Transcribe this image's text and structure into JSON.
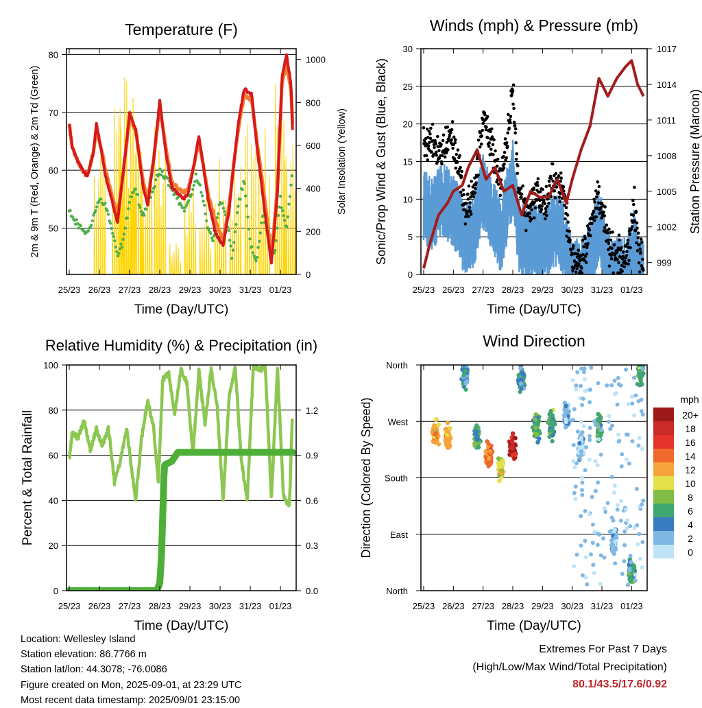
{
  "chart_data": [
    {
      "type": "line",
      "title": "Temperature (F)",
      "xlabel": "Time (Day/UTC)",
      "ylabel": "2m & 9m T (Red, Orange) & 2m Td (Green)",
      "ylabel_right": "Solar Insolation (Yellow)",
      "x_ticks": [
        "25/23",
        "26/23",
        "27/23",
        "28/23",
        "29/23",
        "30/23",
        "31/23",
        "01/23"
      ],
      "ylim": [
        42,
        81
      ],
      "y_ticks": [
        50,
        60,
        70,
        80
      ],
      "ylim_right": [
        0,
        1050
      ],
      "y_ticks_right": [
        0,
        200,
        400,
        600,
        800,
        1000
      ],
      "grid": "horizontal",
      "series": [
        {
          "name": "2m T",
          "color": "#d7191c",
          "x_days": [
            0,
            0.1,
            0.25,
            0.45,
            0.6,
            0.8,
            0.9,
            1.05,
            1.2,
            1.4,
            1.6,
            1.8,
            2.0,
            2.2,
            2.45,
            2.6,
            2.8,
            3.0,
            3.2,
            3.4,
            3.6,
            3.8,
            3.95,
            4.1,
            4.3,
            4.6,
            4.85,
            5.1,
            5.3,
            5.45,
            5.6,
            5.8,
            6.05,
            6.2,
            6.5,
            6.7,
            6.9,
            7.05,
            7.2,
            7.35,
            7.4
          ],
          "values": [
            68,
            64,
            62,
            60,
            59,
            63,
            68,
            64,
            59,
            55,
            51,
            60,
            70,
            67,
            57,
            54,
            62,
            72,
            63,
            57,
            56,
            55,
            56,
            60,
            66,
            55,
            49,
            47,
            53,
            61,
            68,
            74,
            73,
            65,
            52,
            44,
            56,
            76,
            80,
            75,
            67
          ]
        },
        {
          "name": "9m T",
          "color": "#f47d30",
          "x_days": [
            0,
            0.1,
            0.25,
            0.45,
            0.6,
            0.8,
            0.9,
            1.05,
            1.2,
            1.4,
            1.6,
            1.8,
            2.0,
            2.2,
            2.45,
            2.6,
            2.8,
            3.0,
            3.2,
            3.4,
            3.6,
            3.8,
            3.95,
            4.1,
            4.3,
            4.6,
            4.85,
            5.1,
            5.3,
            5.45,
            5.6,
            5.8,
            6.05,
            6.2,
            6.5,
            6.7,
            6.9,
            7.05,
            7.2,
            7.35,
            7.4
          ],
          "values": [
            68,
            64,
            62,
            60,
            59,
            63,
            67,
            64,
            60,
            56,
            52,
            60,
            69,
            67,
            58,
            55,
            62,
            71,
            64,
            58,
            57,
            56,
            57,
            60,
            65,
            56,
            51,
            48,
            54,
            61,
            67,
            73,
            72,
            66,
            54,
            45,
            57,
            75,
            78,
            74,
            68
          ]
        },
        {
          "name": "2m Td",
          "color": "#4daf4a",
          "x_days": [
            0,
            0.2,
            0.4,
            0.6,
            0.8,
            1.0,
            1.2,
            1.4,
            1.6,
            1.8,
            2.0,
            2.2,
            2.4,
            2.6,
            2.8,
            3.0,
            3.2,
            3.4,
            3.6,
            3.8,
            4.0,
            4.2,
            4.4,
            4.6,
            4.8,
            5.0,
            5.2,
            5.4,
            5.6,
            5.8,
            6.0,
            6.2,
            6.4,
            6.6,
            6.8,
            7.0,
            7.2,
            7.4
          ],
          "values": [
            53,
            51,
            50,
            49,
            52,
            55,
            54,
            50,
            45,
            48,
            55,
            57,
            52,
            54,
            57,
            60,
            59,
            57,
            55,
            53,
            55,
            59,
            56,
            50,
            48,
            55,
            52,
            45,
            54,
            58,
            47,
            44,
            52,
            50,
            45,
            55,
            50,
            60
          ]
        },
        {
          "name": "Solar Insolation",
          "color": "#ffd400",
          "axis": "right",
          "peaks": [
            [
              1.0,
              600
            ],
            [
              1.6,
              840
            ],
            [
              1.85,
              900
            ],
            [
              2.0,
              1010
            ],
            [
              2.25,
              720
            ],
            [
              2.55,
              650
            ],
            [
              3.0,
              700
            ],
            [
              3.5,
              160
            ],
            [
              4.0,
              500
            ],
            [
              4.5,
              380
            ],
            [
              5.0,
              700
            ],
            [
              5.5,
              560
            ],
            [
              6.0,
              880
            ],
            [
              6.45,
              700
            ],
            [
              7.0,
              950
            ],
            [
              7.3,
              610
            ]
          ]
        }
      ]
    },
    {
      "type": "scatter",
      "title": "Winds (mph) & Pressure (mb)",
      "xlabel": "Time (Day/UTC)",
      "ylabel": "Sonic/Prop Wind & Gust (Blue, Black)",
      "ylabel_right": "Station Pressure (Maroon)",
      "x_ticks": [
        "25/23",
        "26/23",
        "27/23",
        "28/23",
        "29/23",
        "30/23",
        "31/23",
        "01/23"
      ],
      "ylim": [
        0,
        30
      ],
      "y_ticks": [
        0,
        5,
        10,
        15,
        20,
        25,
        30
      ],
      "ylim_right": [
        998,
        1017
      ],
      "y_ticks_right": [
        999,
        1002,
        1005,
        1008,
        1011,
        1014,
        1017
      ],
      "grid": "horizontal",
      "series": [
        {
          "name": "Wind",
          "color": "#5b9bd5",
          "x_days": [
            0,
            0.3,
            0.6,
            0.9,
            1.2,
            1.4,
            1.7,
            2.0,
            2.3,
            2.6,
            2.8,
            3.0,
            3.2,
            3.5,
            3.8,
            4.1,
            4.4,
            4.7,
            5.0,
            5.3,
            5.6,
            5.9,
            6.2,
            6.5,
            6.8,
            7.1,
            7.3
          ],
          "values": [
            10,
            9,
            11,
            10,
            8,
            5,
            7,
            12,
            9,
            6,
            10,
            14,
            6,
            5,
            6,
            5,
            7,
            6,
            1,
            1,
            3,
            8,
            2,
            1,
            1,
            5,
            1
          ]
        },
        {
          "name": "Gust",
          "color": "#000000",
          "x_days": [
            0,
            0.3,
            0.6,
            0.9,
            1.2,
            1.4,
            1.7,
            2.0,
            2.3,
            2.6,
            2.8,
            3.0,
            3.2,
            3.5,
            3.8,
            4.1,
            4.4,
            4.7,
            5.0,
            5.3,
            5.6,
            5.9,
            6.2,
            6.5,
            6.8,
            7.1,
            7.3
          ],
          "values": [
            17,
            18,
            16,
            19,
            14,
            8,
            11,
            21,
            17,
            12,
            17,
            25,
            11,
            8,
            11,
            9,
            13,
            11,
            2,
            2,
            6,
            11,
            4,
            2,
            2,
            9,
            2
          ]
        },
        {
          "name": "Station Pressure",
          "color": "#a21c1c",
          "axis": "right",
          "x_days": [
            0,
            0.2,
            0.5,
            0.8,
            1.0,
            1.3,
            1.5,
            1.8,
            2.1,
            2.4,
            2.7,
            3.0,
            3.3,
            3.6,
            3.9,
            4.2,
            4.5,
            4.8,
            5.0,
            5.3,
            5.6,
            5.9,
            6.2,
            6.5,
            6.8,
            7.0,
            7.2,
            7.4
          ],
          "values": [
            998.5,
            1000.5,
            1003,
            1004,
            1005,
            1005.5,
            1007,
            1008.5,
            1006,
            1007,
            1005,
            1005.5,
            1003,
            1005,
            1004.5,
            1004.5,
            1006,
            1004,
            1006,
            1008.5,
            1010.5,
            1014.5,
            1013,
            1014.5,
            1015.5,
            1016,
            1014,
            1013
          ]
        }
      ]
    },
    {
      "type": "line",
      "title": "Relative Humidity (%) & Precipitation (in)",
      "xlabel": "Time (Day/UTC)",
      "ylabel": "Percent & Total Rainfall",
      "x_ticks": [
        "25/23",
        "26/23",
        "27/23",
        "28/23",
        "29/23",
        "30/23",
        "31/23",
        "01/23"
      ],
      "ylim": [
        0,
        100
      ],
      "y_ticks": [
        0,
        20,
        40,
        60,
        80,
        100
      ],
      "ylim_right": [
        0,
        1.5
      ],
      "y_ticks_right": [
        "0.0",
        "0.3",
        "0.6",
        "0.9",
        "1.2"
      ],
      "grid": "horizontal",
      "series": [
        {
          "name": "Relative Humidity",
          "color": "#8cc751",
          "x_days": [
            0,
            0.1,
            0.3,
            0.5,
            0.7,
            0.9,
            1.1,
            1.3,
            1.5,
            1.7,
            1.9,
            2.0,
            2.2,
            2.4,
            2.6,
            2.8,
            2.95,
            3.1,
            3.3,
            3.5,
            3.7,
            3.9,
            4.1,
            4.3,
            4.5,
            4.7,
            4.9,
            5.1,
            5.3,
            5.5,
            5.7,
            5.9,
            6.1,
            6.3,
            6.5,
            6.7,
            6.9,
            7.1,
            7.3,
            7.4
          ],
          "values": [
            58,
            70,
            68,
            75,
            62,
            72,
            64,
            72,
            48,
            58,
            72,
            62,
            40,
            68,
            84,
            72,
            48,
            94,
            96,
            78,
            98,
            92,
            60,
            98,
            74,
            98,
            82,
            40,
            86,
            99,
            58,
            40,
            99,
            98,
            99,
            40,
            99,
            42,
            38,
            80
          ]
        },
        {
          "name": "Total Precipitation",
          "color": "#4daf37",
          "axis": "right",
          "x_days": [
            0,
            2.9,
            3.0,
            3.05,
            3.1,
            3.15,
            3.2,
            3.4,
            3.6,
            7.4
          ],
          "values": [
            0,
            0,
            0.05,
            0.2,
            0.5,
            0.83,
            0.84,
            0.86,
            0.92,
            0.92
          ]
        }
      ]
    },
    {
      "type": "scatter",
      "title": "Wind Direction",
      "xlabel": "Time (Day/UTC)",
      "ylabel": "Direction (Colored By Speed)",
      "x_ticks": [
        "25/23",
        "26/23",
        "27/23",
        "28/23",
        "29/23",
        "30/23",
        "31/23",
        "01/23"
      ],
      "y_ticks": [
        "North",
        "East",
        "South",
        "West",
        "North"
      ],
      "ylim": [
        0,
        360
      ],
      "colorbar_title": "mph",
      "colorbar_labels": [
        "20+",
        "18",
        "16",
        "14",
        "12",
        "10",
        "8",
        "6",
        "4",
        "2",
        "0"
      ],
      "colorbar_colors": [
        "#9e1a1a",
        "#c92a2a",
        "#e5332b",
        "#ef6a2a",
        "#f7a33b",
        "#e3e04b",
        "#82bd47",
        "#40a672",
        "#3a7cc0",
        "#80b8e4",
        "#bfe3f7"
      ],
      "clusters": [
        {
          "x_day": 0.4,
          "dir": 250,
          "mph": 12
        },
        {
          "x_day": 0.8,
          "dir": 245,
          "mph": 12
        },
        {
          "x_day": 1.4,
          "dir": 345,
          "mph": 4
        },
        {
          "x_day": 1.8,
          "dir": 245,
          "mph": 6
        },
        {
          "x_day": 2.2,
          "dir": 215,
          "mph": 14
        },
        {
          "x_day": 2.6,
          "dir": 195,
          "mph": 10
        },
        {
          "x_day": 3.0,
          "dir": 230,
          "mph": 18
        },
        {
          "x_day": 3.3,
          "dir": 340,
          "mph": 4
        },
        {
          "x_day": 3.8,
          "dir": 260,
          "mph": 6
        },
        {
          "x_day": 4.3,
          "dir": 265,
          "mph": 6
        },
        {
          "x_day": 4.8,
          "dir": 280,
          "mph": 2
        },
        {
          "x_day": 5.3,
          "dir": 230,
          "mph": 1
        },
        {
          "x_day": 5.9,
          "dir": 260,
          "mph": 6
        },
        {
          "x_day": 6.4,
          "dir": 80,
          "mph": 2
        },
        {
          "x_day": 7.0,
          "dir": 30,
          "mph": 6
        },
        {
          "x_day": 7.3,
          "dir": 350,
          "mph": 6
        }
      ]
    }
  ],
  "info": {
    "location": "Location: Wellesley Island",
    "elevation": "Station elevation: 86.7766 m",
    "latlon": "Station lat/lon: 44.3078; -76.0086",
    "created": "Figure created on Mon, 2025-09-01, at 23:29 UTC",
    "recent": "Most recent data timestamp: 2025/09/01 23:15:00"
  },
  "extremes": {
    "title": "Extremes For Past 7 Days",
    "subtitle": "(High/Low/Max Wind/Total Precipitation)",
    "values": "80.1/43.5/17.6/0.92"
  }
}
